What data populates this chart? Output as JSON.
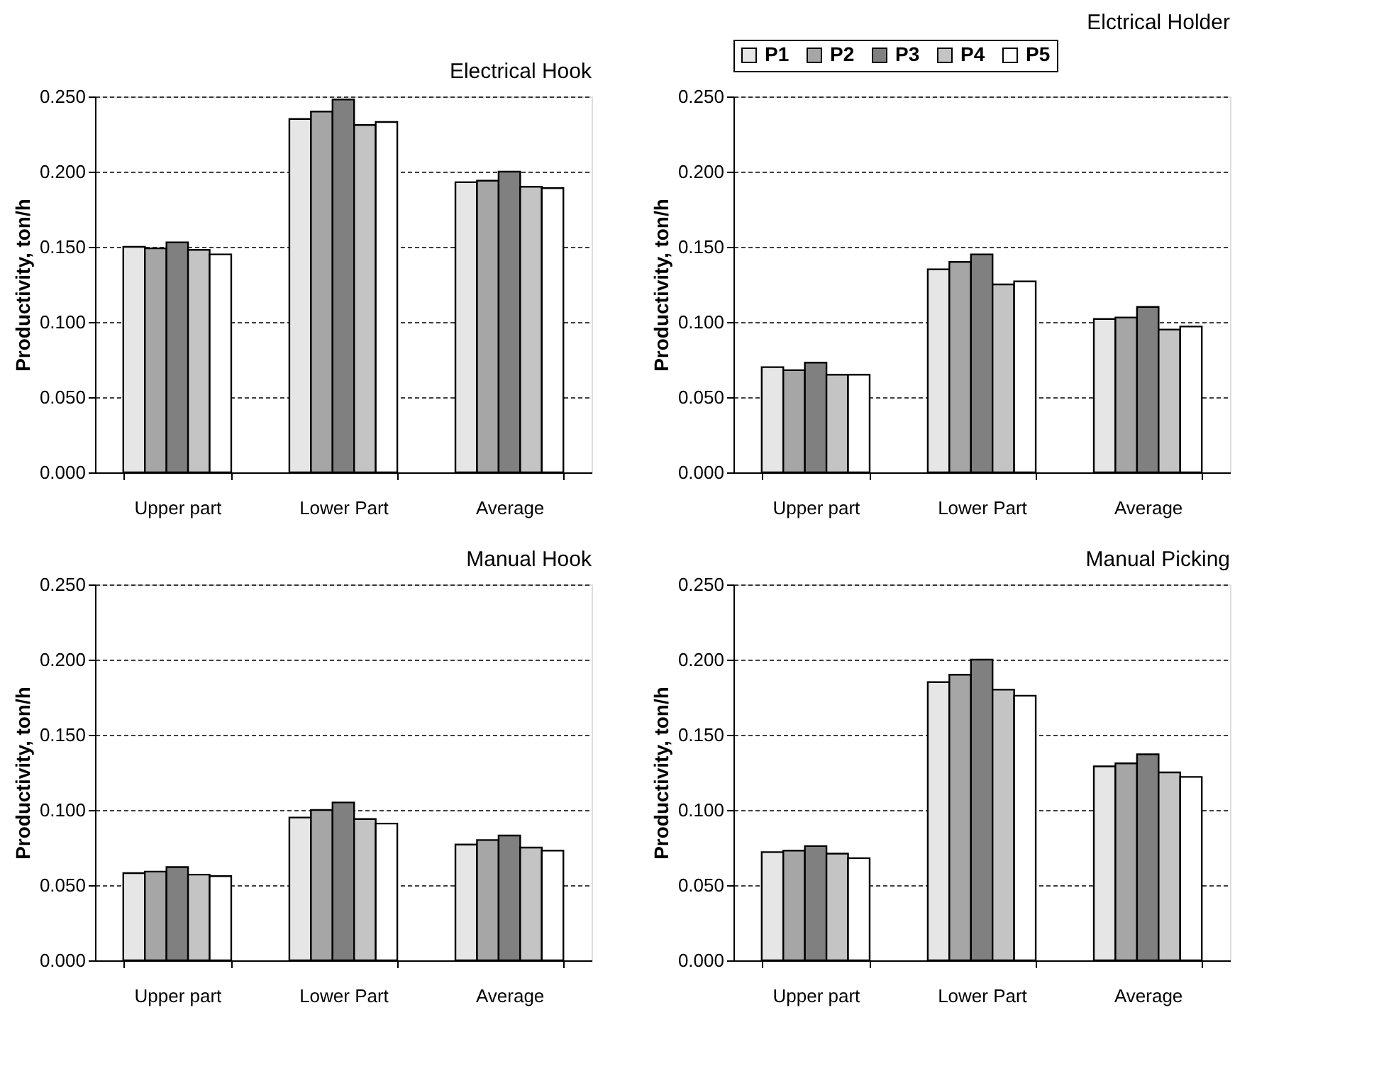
{
  "chart_data": [
    {
      "type": "bar",
      "title": "Electrical Hook",
      "ylabel": "Productivity, ton/h",
      "categories": [
        "Upper part",
        "Lower Part",
        "Average"
      ],
      "ylim": [
        0,
        0.25
      ],
      "yticks": [
        {
          "value": 0,
          "label": "0.000"
        },
        {
          "value": 0.05,
          "label": "0.050"
        },
        {
          "value": 0.1,
          "label": "0.100"
        },
        {
          "value": 0.15,
          "label": "0.150"
        },
        {
          "value": 0.2,
          "label": "0.200"
        },
        {
          "value": 0.25,
          "label": "0.250"
        }
      ],
      "grid": "y",
      "legend": false,
      "series": [
        {
          "color": "#e6e6e6",
          "values": [
            0.15,
            0.235,
            0.193
          ]
        },
        {
          "color": "#a6a6a6",
          "values": [
            0.149,
            0.24,
            0.194
          ]
        },
        {
          "color": "#808080",
          "values": [
            0.153,
            0.248,
            0.2
          ]
        },
        {
          "color": "#c4c4c4",
          "values": [
            0.148,
            0.231,
            0.19
          ]
        },
        {
          "color": "#ffffff",
          "values": [
            0.145,
            0.233,
            0.189
          ]
        }
      ]
    },
    {
      "type": "bar",
      "title": "Elctrical Holder",
      "ylabel": "Productivity, ton/h",
      "categories": [
        "Upper part",
        "Lower Part",
        "Average"
      ],
      "ylim": [
        0,
        0.25
      ],
      "yticks": [
        {
          "value": 0,
          "label": "0.000"
        },
        {
          "value": 0.05,
          "label": "0.050"
        },
        {
          "value": 0.1,
          "label": "0.100"
        },
        {
          "value": 0.15,
          "label": "0.150"
        },
        {
          "value": 0.2,
          "label": "0.200"
        },
        {
          "value": 0.25,
          "label": "0.250"
        }
      ],
      "grid": "y",
      "legend": "top",
      "series": [
        {
          "name": "P1",
          "color": "#e6e6e6",
          "values": [
            0.07,
            0.135,
            0.102
          ]
        },
        {
          "name": "P2",
          "color": "#a6a6a6",
          "values": [
            0.068,
            0.14,
            0.103
          ]
        },
        {
          "name": "P3",
          "color": "#808080",
          "values": [
            0.073,
            0.145,
            0.11
          ]
        },
        {
          "name": "P4",
          "color": "#c4c4c4",
          "values": [
            0.065,
            0.125,
            0.095
          ]
        },
        {
          "name": "P5",
          "color": "#ffffff",
          "values": [
            0.065,
            0.127,
            0.097
          ]
        }
      ]
    },
    {
      "type": "bar",
      "title": "Manual Hook",
      "ylabel": "Productivity, ton/h",
      "categories": [
        "Upper part",
        "Lower Part",
        "Average"
      ],
      "ylim": [
        0,
        0.25
      ],
      "yticks": [
        {
          "value": 0,
          "label": "0.000"
        },
        {
          "value": 0.05,
          "label": "0.050"
        },
        {
          "value": 0.1,
          "label": "0.100"
        },
        {
          "value": 0.15,
          "label": "0.150"
        },
        {
          "value": 0.2,
          "label": "0.200"
        },
        {
          "value": 0.25,
          "label": "0.250"
        }
      ],
      "grid": "y",
      "legend": false,
      "series": [
        {
          "color": "#e6e6e6",
          "values": [
            0.058,
            0.095,
            0.077
          ]
        },
        {
          "color": "#a6a6a6",
          "values": [
            0.059,
            0.1,
            0.08
          ]
        },
        {
          "color": "#808080",
          "values": [
            0.062,
            0.105,
            0.083
          ]
        },
        {
          "color": "#c4c4c4",
          "values": [
            0.057,
            0.094,
            0.075
          ]
        },
        {
          "color": "#ffffff",
          "values": [
            0.056,
            0.091,
            0.073
          ]
        }
      ]
    },
    {
      "type": "bar",
      "title": "Manual Picking",
      "ylabel": "Productivity, ton/h",
      "categories": [
        "Upper part",
        "Lower Part",
        "Average"
      ],
      "ylim": [
        0,
        0.25
      ],
      "yticks": [
        {
          "value": 0,
          "label": "0.000"
        },
        {
          "value": 0.05,
          "label": "0.050"
        },
        {
          "value": 0.1,
          "label": "0.100"
        },
        {
          "value": 0.15,
          "label": "0.150"
        },
        {
          "value": 0.2,
          "label": "0.200"
        },
        {
          "value": 0.25,
          "label": "0.250"
        }
      ],
      "grid": "y",
      "legend": false,
      "series": [
        {
          "color": "#e6e6e6",
          "values": [
            0.072,
            0.185,
            0.129
          ]
        },
        {
          "color": "#a6a6a6",
          "values": [
            0.073,
            0.19,
            0.131
          ]
        },
        {
          "color": "#808080",
          "values": [
            0.076,
            0.2,
            0.137
          ]
        },
        {
          "color": "#c4c4c4",
          "values": [
            0.071,
            0.18,
            0.125
          ]
        },
        {
          "color": "#ffffff",
          "values": [
            0.068,
            0.176,
            0.122
          ]
        }
      ]
    }
  ]
}
